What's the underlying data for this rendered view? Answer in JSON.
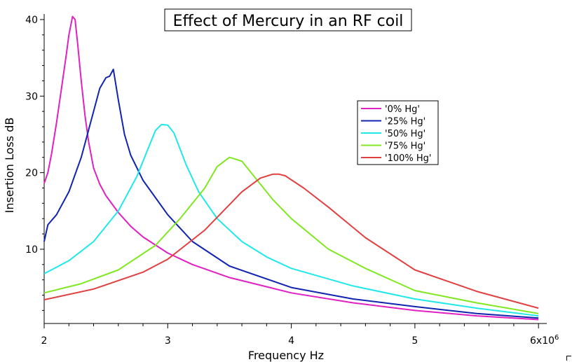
{
  "chart_data": {
    "type": "line",
    "title": "Effect of Mercury in an RF coil",
    "xlabel": "Frequency Hz",
    "ylabel": "Insertion Loss dB",
    "x_scale_label": "x10",
    "x_scale_exponent": "6",
    "xlim": [
      2.0,
      6.05
    ],
    "ylim": [
      0.3,
      41
    ],
    "xticks": [
      {
        "value": 2,
        "label": "2"
      },
      {
        "value": 3,
        "label": "3"
      },
      {
        "value": 4,
        "label": "4"
      },
      {
        "value": 5,
        "label": "5"
      },
      {
        "value": 6,
        "label": "6"
      }
    ],
    "yticks": [
      {
        "value": 10,
        "label": "10"
      },
      {
        "value": 20,
        "label": "20"
      },
      {
        "value": 30,
        "label": "30"
      },
      {
        "value": 40,
        "label": "40"
      }
    ],
    "legend_position": "right",
    "series": [
      {
        "name": "'0% Hg'",
        "color": "#e020c0",
        "x": [
          2.0,
          2.03,
          2.06,
          2.1,
          2.14,
          2.18,
          2.2,
          2.23,
          2.25,
          2.27,
          2.3,
          2.33,
          2.36,
          2.4,
          2.45,
          2.5,
          2.6,
          2.7,
          2.8,
          3.0,
          3.2,
          3.5,
          4.0,
          4.5,
          5.0,
          5.5,
          6.0
        ],
        "y": [
          18.6,
          20.0,
          22.5,
          26.5,
          31.0,
          35.5,
          38.0,
          40.4,
          40.0,
          37.0,
          32.0,
          27.5,
          24.0,
          20.6,
          18.5,
          17.0,
          14.8,
          13.0,
          11.6,
          9.5,
          8.0,
          6.3,
          4.3,
          3.0,
          2.0,
          1.3,
          0.8
        ]
      },
      {
        "name": "'25% Hg'",
        "color": "#1024b0",
        "x": [
          2.0,
          2.03,
          2.1,
          2.2,
          2.3,
          2.4,
          2.45,
          2.5,
          2.53,
          2.56,
          2.6,
          2.65,
          2.7,
          2.8,
          3.0,
          3.2,
          3.5,
          4.0,
          4.5,
          5.0,
          5.5,
          6.0
        ],
        "y": [
          11.0,
          13.2,
          14.5,
          17.5,
          22.0,
          28.0,
          31.0,
          32.4,
          32.6,
          33.5,
          29.5,
          25.0,
          22.3,
          19.0,
          14.5,
          11.0,
          7.8,
          5.0,
          3.5,
          2.5,
          1.6,
          1.0
        ]
      },
      {
        "name": "'50% Hg'",
        "color": "#20e8e8",
        "x": [
          2.0,
          2.2,
          2.4,
          2.6,
          2.75,
          2.85,
          2.9,
          2.95,
          3.0,
          3.05,
          3.15,
          3.25,
          3.4,
          3.6,
          3.8,
          4.0,
          4.5,
          5.0,
          5.5,
          6.0
        ],
        "y": [
          6.8,
          8.5,
          11.0,
          15.0,
          19.5,
          23.5,
          25.5,
          26.3,
          26.2,
          25.2,
          21.0,
          17.5,
          14.0,
          11.0,
          9.0,
          7.5,
          5.2,
          3.5,
          2.3,
          1.3
        ]
      },
      {
        "name": "'75% Hg'",
        "color": "#80e820",
        "x": [
          2.0,
          2.3,
          2.6,
          2.9,
          3.1,
          3.3,
          3.4,
          3.5,
          3.6,
          3.7,
          3.85,
          4.0,
          4.3,
          4.6,
          5.0,
          5.5,
          6.0
        ],
        "y": [
          4.3,
          5.5,
          7.3,
          10.5,
          14.0,
          18.0,
          20.8,
          22.0,
          21.5,
          19.5,
          16.5,
          14.0,
          10.0,
          7.5,
          4.6,
          3.0,
          1.6
        ]
      },
      {
        "name": "'100% Hg'",
        "color": "#e04040",
        "x": [
          2.0,
          2.4,
          2.8,
          3.0,
          3.3,
          3.6,
          3.75,
          3.85,
          3.9,
          3.95,
          4.1,
          4.3,
          4.6,
          5.0,
          5.5,
          6.0
        ],
        "y": [
          3.4,
          4.8,
          7.0,
          8.7,
          12.5,
          17.5,
          19.3,
          19.8,
          19.8,
          19.6,
          18.0,
          15.5,
          11.5,
          7.3,
          4.5,
          2.3
        ]
      }
    ]
  }
}
